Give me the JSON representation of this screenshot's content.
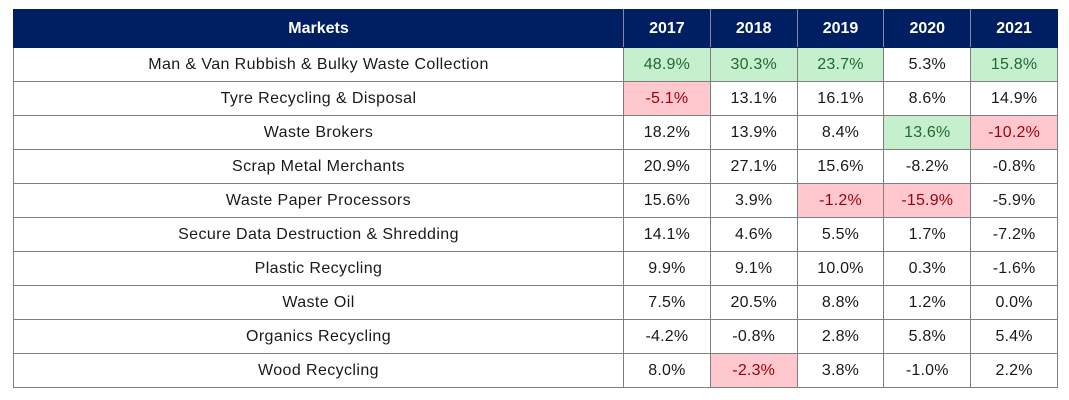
{
  "chart_data": {
    "type": "table",
    "columns": [
      "Markets",
      "2017",
      "2018",
      "2019",
      "2020",
      "2021"
    ],
    "colors": {
      "header_background": "#001f63",
      "header_text": "#ffffff",
      "positive_highlight_bg": "#c6efce",
      "positive_highlight_text": "#1e6b2e",
      "negative_highlight_bg": "#ffc7ce",
      "negative_highlight_text": "#9c0006"
    },
    "rows": [
      {
        "market": "Man & Van Rubbish & Bulky Waste Collection",
        "values": [
          "48.9%",
          "30.3%",
          "23.7%",
          "5.3%",
          "15.8%"
        ],
        "highlight": [
          "green",
          "green",
          "green",
          "",
          "green"
        ]
      },
      {
        "market": "Tyre Recycling & Disposal",
        "values": [
          "-5.1%",
          "13.1%",
          "16.1%",
          "8.6%",
          "14.9%"
        ],
        "highlight": [
          "red",
          "",
          "",
          "",
          ""
        ]
      },
      {
        "market": "Waste Brokers",
        "values": [
          "18.2%",
          "13.9%",
          "8.4%",
          "13.6%",
          "-10.2%"
        ],
        "highlight": [
          "",
          "",
          "",
          "green",
          "red"
        ]
      },
      {
        "market": "Scrap Metal Merchants",
        "values": [
          "20.9%",
          "27.1%",
          "15.6%",
          "-8.2%",
          "-0.8%"
        ],
        "highlight": [
          "",
          "",
          "",
          "",
          ""
        ]
      },
      {
        "market": "Waste Paper Processors",
        "values": [
          "15.6%",
          "3.9%",
          "-1.2%",
          "-15.9%",
          "-5.9%"
        ],
        "highlight": [
          "",
          "",
          "red",
          "red",
          ""
        ]
      },
      {
        "market": "Secure Data Destruction & Shredding",
        "values": [
          "14.1%",
          "4.6%",
          "5.5%",
          "1.7%",
          "-7.2%"
        ],
        "highlight": [
          "",
          "",
          "",
          "",
          ""
        ]
      },
      {
        "market": "Plastic Recycling",
        "values": [
          "9.9%",
          "9.1%",
          "10.0%",
          "0.3%",
          "-1.6%"
        ],
        "highlight": [
          "",
          "",
          "",
          "",
          ""
        ]
      },
      {
        "market": "Waste Oil",
        "values": [
          "7.5%",
          "20.5%",
          "8.8%",
          "1.2%",
          "0.0%"
        ],
        "highlight": [
          "",
          "",
          "",
          "",
          ""
        ]
      },
      {
        "market": "Organics Recycling",
        "values": [
          "-4.2%",
          "-0.8%",
          "2.8%",
          "5.8%",
          "5.4%"
        ],
        "highlight": [
          "",
          "",
          "",
          "",
          ""
        ]
      },
      {
        "market": "Wood Recycling",
        "values": [
          "8.0%",
          "-2.3%",
          "3.8%",
          "-1.0%",
          "2.2%"
        ],
        "highlight": [
          "",
          "red",
          "",
          "",
          ""
        ]
      }
    ]
  }
}
